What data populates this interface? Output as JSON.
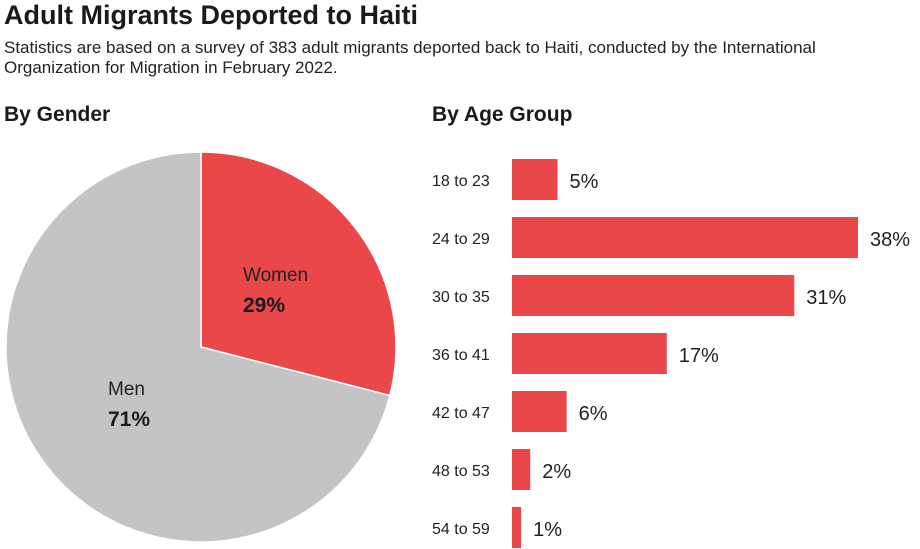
{
  "title": "Adult Migrants Deported to Haiti",
  "subtitle": "Statistics are based on a survey of 383 adult migrants deported back to Haiti, conducted by the International Organization for Migration in February 2022.",
  "colors": {
    "accent": "#ea474b",
    "neutral": "#c4c4c6",
    "text": "#222222"
  },
  "chart_data": [
    {
      "type": "pie",
      "title": "By Gender",
      "slices": [
        {
          "label": "Women",
          "value": 29,
          "value_label": "29%",
          "color": "#ea474b"
        },
        {
          "label": "Men",
          "value": 71,
          "value_label": "71%",
          "color": "#c4c4c6"
        }
      ]
    },
    {
      "type": "bar",
      "orientation": "horizontal",
      "title": "By Age Group",
      "categories": [
        "18 to 23",
        "24 to 29",
        "30 to 35",
        "36 to 41",
        "42 to 47",
        "48 to 53",
        "54 to 59"
      ],
      "values": [
        5,
        38,
        31,
        17,
        6,
        2,
        1
      ],
      "value_labels": [
        "5%",
        "38%",
        "31%",
        "17%",
        "6%",
        "2%",
        "1%"
      ],
      "color": "#ea474b",
      "xlim": [
        0,
        38
      ]
    }
  ]
}
